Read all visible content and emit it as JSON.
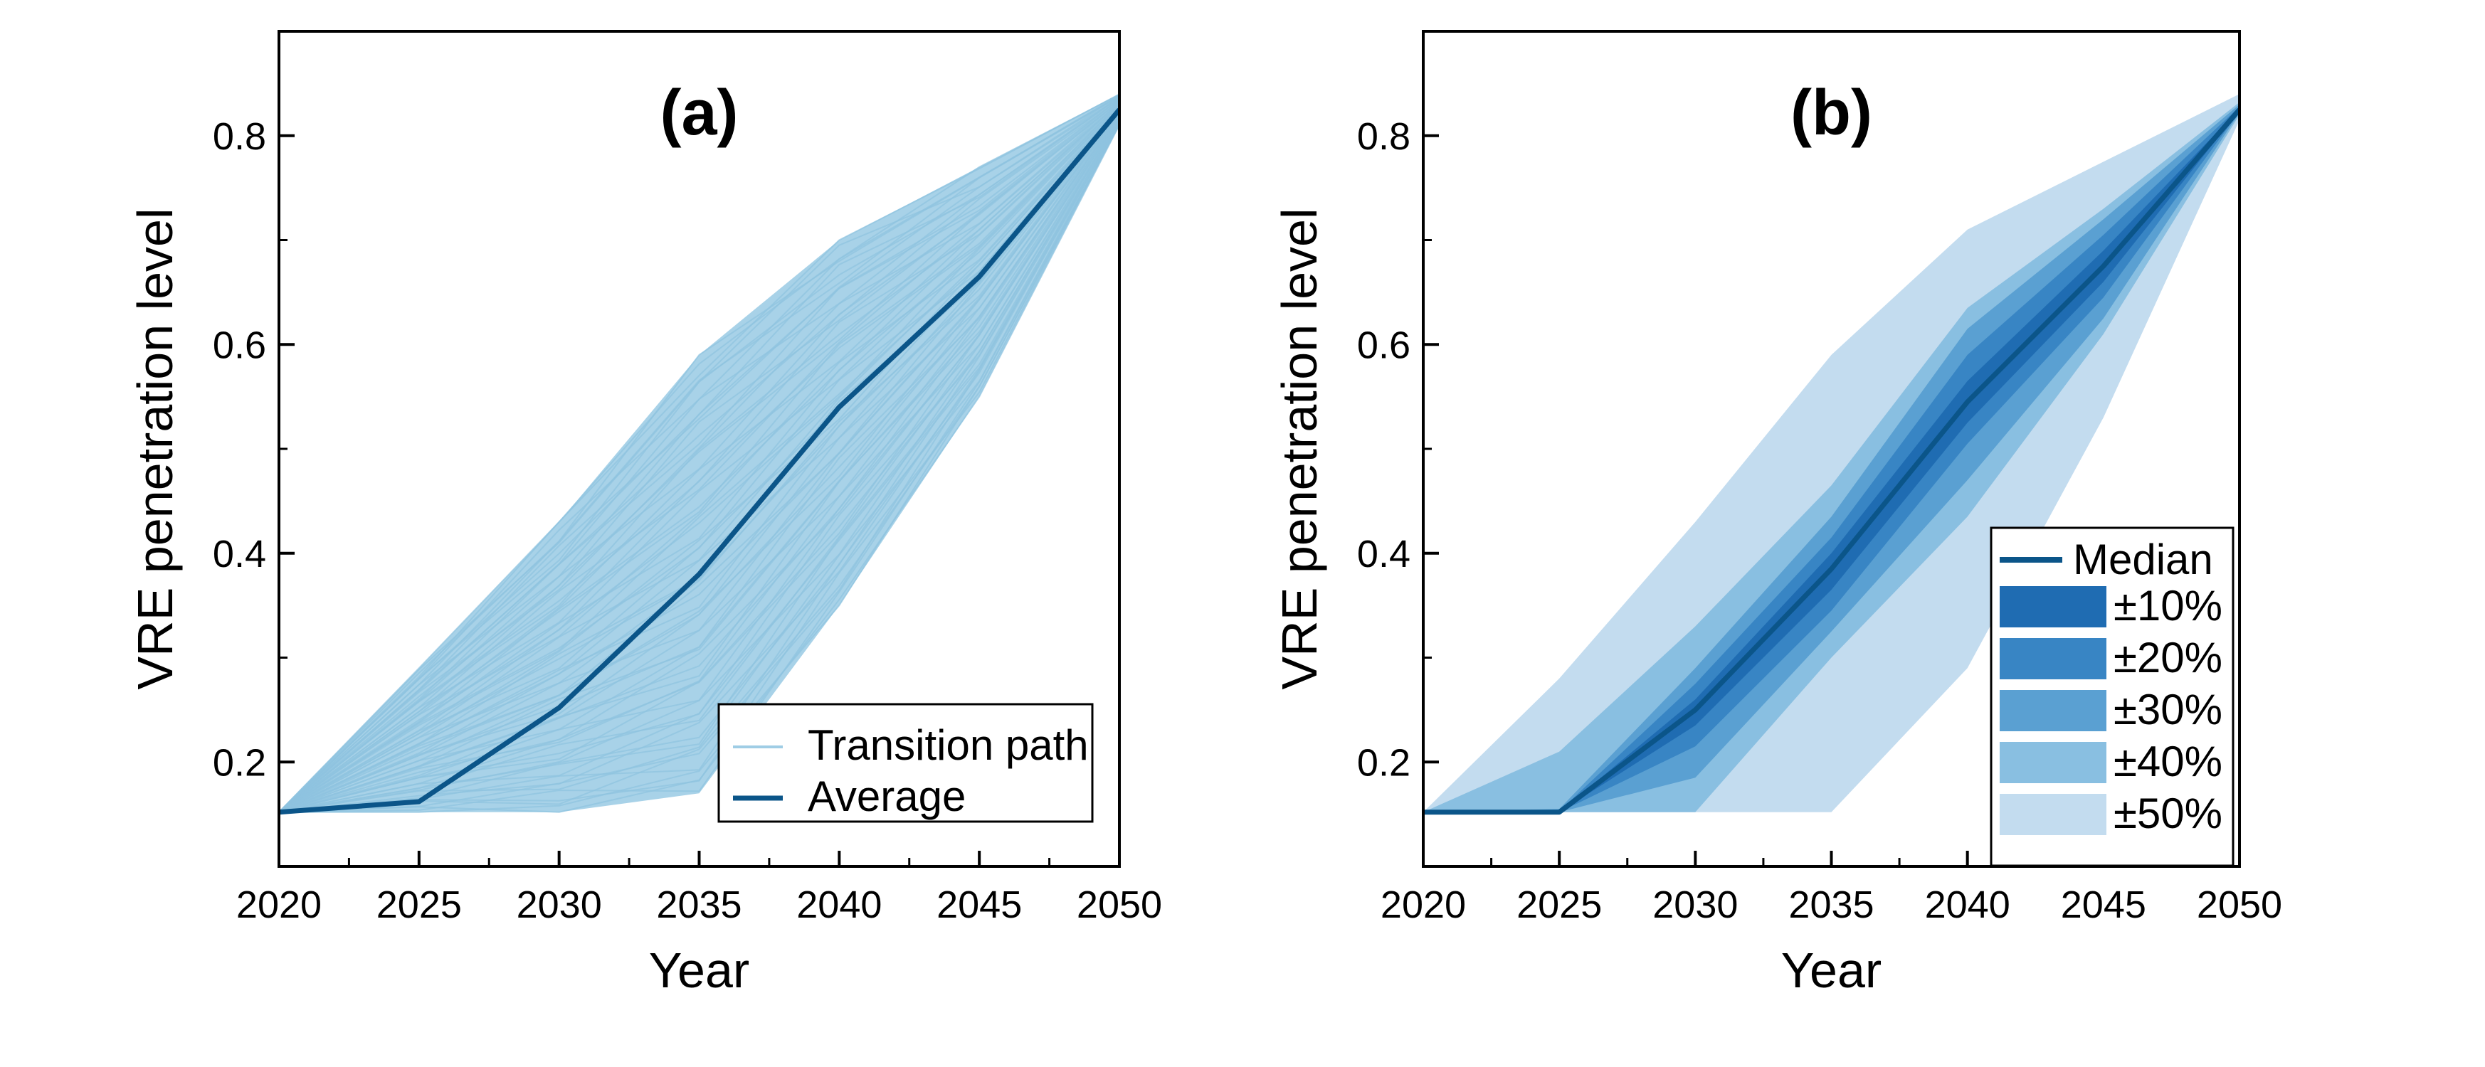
{
  "colors": {
    "path_light": "#9fcde5",
    "average_line": "#0b5589",
    "band_10": "#1f6cb2",
    "band_20": "#3885c4",
    "band_30": "#5aa0d2",
    "band_40": "#89bfe1",
    "band_50": "#c3dcef"
  },
  "chart_data": [
    {
      "type": "line",
      "panel": "(a)",
      "xlabel": "Year",
      "ylabel": "VRE penetration level",
      "xlim": [
        2020,
        2050
      ],
      "ylim": [
        0.1,
        0.9
      ],
      "xticks": [
        "2020",
        "2025",
        "2030",
        "2035",
        "2040",
        "2045",
        "2050"
      ],
      "yticks": [
        "0.2",
        "0.4",
        "0.6",
        "0.8"
      ],
      "legend": {
        "position": "bottom-right",
        "entries": [
          "Transition path",
          "Average"
        ]
      },
      "x": [
        2020,
        2025,
        2030,
        2035,
        2040,
        2045,
        2050
      ],
      "series": [
        {
          "name": "Average",
          "values": [
            0.152,
            0.162,
            0.252,
            0.38,
            0.54,
            0.665,
            0.825
          ]
        }
      ],
      "transition_path_envelope": {
        "upper": [
          0.152,
          0.29,
          0.43,
          0.59,
          0.7,
          0.77,
          0.84
        ],
        "lower": [
          0.152,
          0.152,
          0.152,
          0.17,
          0.35,
          0.55,
          0.81
        ]
      }
    },
    {
      "type": "area",
      "panel": "(b)",
      "xlabel": "Year",
      "ylabel": "VRE penetration level",
      "xlim": [
        2020,
        2050
      ],
      "ylim": [
        0.1,
        0.9
      ],
      "xticks": [
        "2020",
        "2025",
        "2030",
        "2035",
        "2040",
        "2045",
        "2050"
      ],
      "yticks": [
        "0.2",
        "0.4",
        "0.6",
        "0.8"
      ],
      "legend": {
        "position": "bottom-right",
        "entries": [
          "Median",
          "±10%",
          "±20%",
          "±30%",
          "±40%",
          "±50%"
        ]
      },
      "x": [
        2020,
        2025,
        2030,
        2035,
        2040,
        2045,
        2050
      ],
      "median": [
        0.152,
        0.152,
        0.25,
        0.385,
        0.545,
        0.675,
        0.825
      ],
      "bands": [
        {
          "name": "±50%",
          "upper": [
            0.152,
            0.28,
            0.43,
            0.59,
            0.71,
            0.775,
            0.84
          ],
          "lower": [
            0.152,
            0.152,
            0.152,
            0.152,
            0.29,
            0.53,
            0.815
          ]
        },
        {
          "name": "±40%",
          "upper": [
            0.152,
            0.21,
            0.33,
            0.465,
            0.635,
            0.73,
            0.832
          ],
          "lower": [
            0.152,
            0.152,
            0.152,
            0.3,
            0.435,
            0.61,
            0.82
          ]
        },
        {
          "name": "±30%",
          "upper": [
            0.152,
            0.155,
            0.29,
            0.435,
            0.615,
            0.72,
            0.83
          ],
          "lower": [
            0.152,
            0.152,
            0.185,
            0.325,
            0.47,
            0.625,
            0.822
          ]
        },
        {
          "name": "±20%",
          "upper": [
            0.152,
            0.153,
            0.275,
            0.415,
            0.59,
            0.705,
            0.828
          ],
          "lower": [
            0.152,
            0.152,
            0.215,
            0.345,
            0.505,
            0.645,
            0.823
          ]
        },
        {
          "name": "±10%",
          "upper": [
            0.152,
            0.152,
            0.26,
            0.4,
            0.565,
            0.69,
            0.826
          ],
          "lower": [
            0.152,
            0.152,
            0.235,
            0.365,
            0.525,
            0.66,
            0.824
          ]
        }
      ]
    }
  ]
}
